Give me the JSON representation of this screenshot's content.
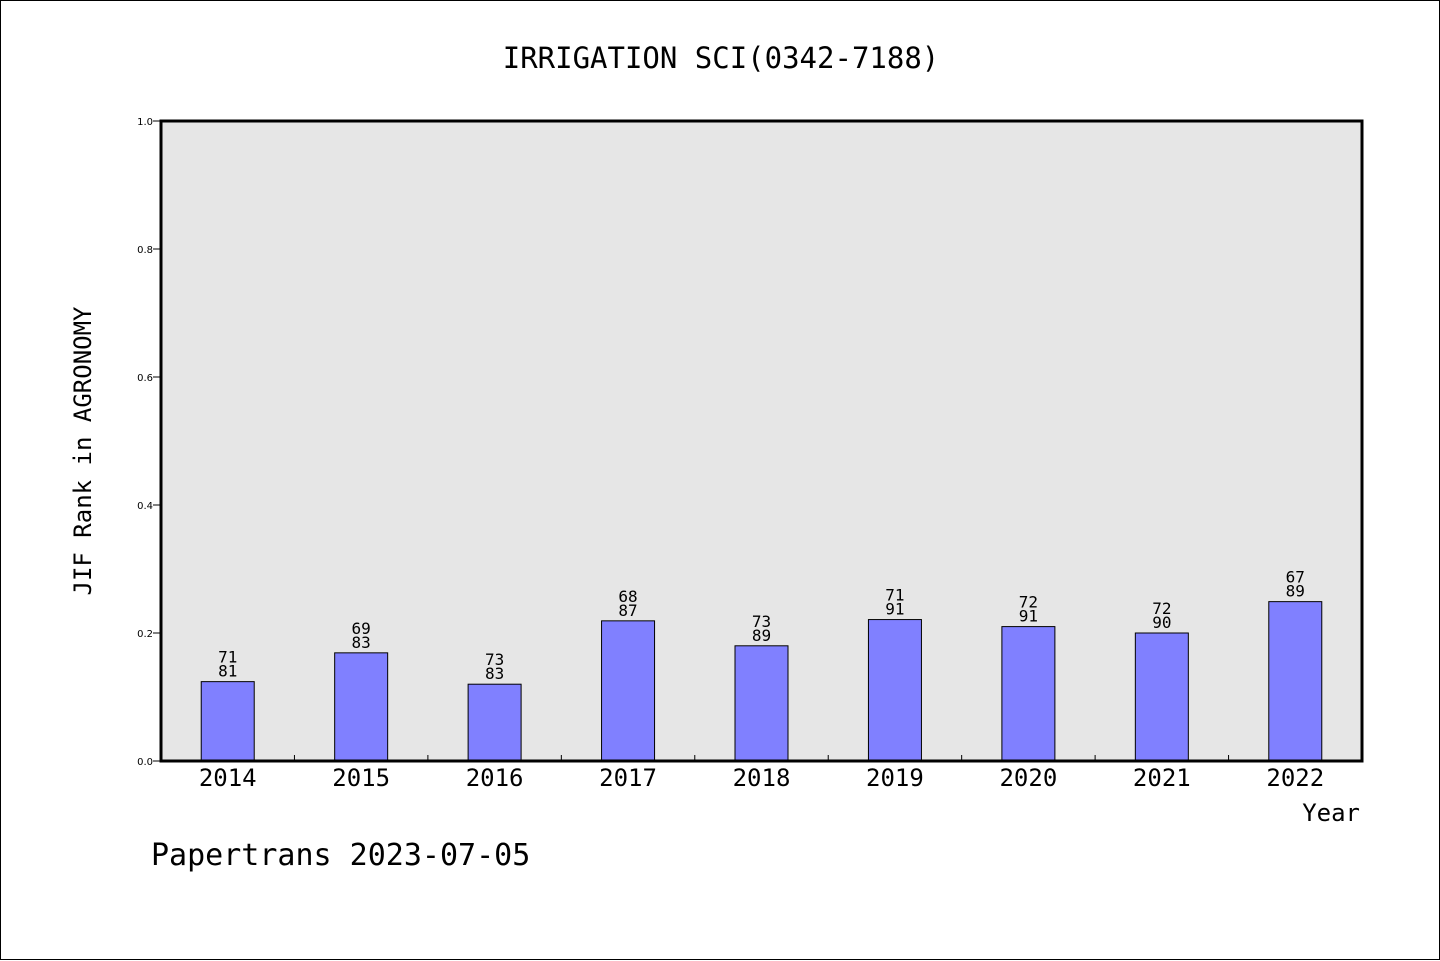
{
  "chart_data": {
    "type": "bar",
    "title": "IRRIGATION SCI(0342-7188)",
    "xlabel": "Year",
    "ylabel": "JIF Rank in AGRONOMY",
    "categories": [
      "2014",
      "2015",
      "2016",
      "2017",
      "2018",
      "2019",
      "2020",
      "2021",
      "2022"
    ],
    "values": [
      0.124,
      0.169,
      0.12,
      0.219,
      0.18,
      0.221,
      0.21,
      0.2,
      0.249
    ],
    "ranks": [
      "71",
      "69",
      "73",
      "68",
      "73",
      "71",
      "72",
      "72",
      "67"
    ],
    "totals": [
      "81",
      "83",
      "83",
      "87",
      "89",
      "91",
      "91",
      "90",
      "89"
    ],
    "ylim": [
      0,
      1
    ],
    "yticks": [
      "0.0",
      "0.2",
      "0.4",
      "0.6",
      "0.8",
      "1.0"
    ],
    "grid": false,
    "legend": "none",
    "colors": {
      "bar": "#8080ff",
      "plot_background": "#e6e6e6",
      "axis": "#000000"
    }
  },
  "footer": {
    "text": "Papertrans 2023-07-05"
  }
}
